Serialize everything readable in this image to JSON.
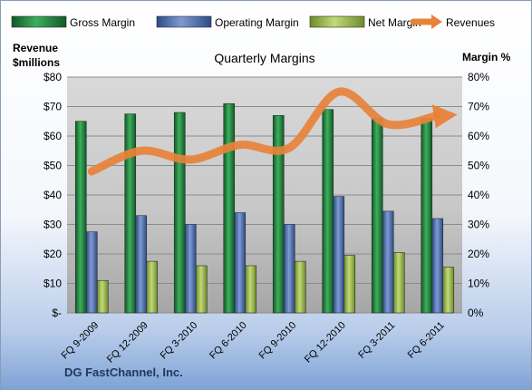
{
  "chart_data": {
    "type": "bar",
    "title": "Quarterly Margins",
    "ylabel_left": "Revenue\n$millions",
    "ylabel_right": "Margin %",
    "categories": [
      "FQ 9-2009",
      "FQ 12-2009",
      "FQ 3-2010",
      "FQ 6-2010",
      "FQ 9-2010",
      "FQ 12-2010",
      "FQ 3-2011",
      "FQ 6-2011"
    ],
    "ylim_left": [
      0,
      80
    ],
    "ylim_right": [
      0,
      80
    ],
    "left_ticks": [
      "$-",
      "$10",
      "$20",
      "$30",
      "$40",
      "$50",
      "$60",
      "$70",
      "$80"
    ],
    "right_ticks": [
      "0%",
      "10%",
      "20%",
      "30%",
      "40%",
      "50%",
      "60%",
      "70%",
      "80%"
    ],
    "legend_position": "top",
    "series": [
      {
        "name": "Gross Margin",
        "type": "bar",
        "axis": "right",
        "unit": "%",
        "color": "#1a7a3a",
        "values": [
          65,
          67.5,
          68,
          71,
          67,
          69,
          66,
          66
        ]
      },
      {
        "name": "Operating Margin",
        "type": "bar",
        "axis": "right",
        "unit": "%",
        "color": "#4a6aab",
        "values": [
          27.5,
          33,
          30,
          34,
          30,
          39.5,
          34.5,
          32
        ]
      },
      {
        "name": "Net Margin",
        "type": "bar",
        "axis": "right",
        "unit": "%",
        "color": "#8fae3e",
        "values": [
          11,
          17.5,
          16,
          16,
          17.5,
          19.5,
          20.5,
          15.5
        ]
      },
      {
        "name": "Revenues",
        "type": "line",
        "axis": "left",
        "unit": "$ millions",
        "color": "#e8823a",
        "values": [
          48,
          55,
          52,
          57,
          56,
          75,
          64,
          67
        ]
      }
    ],
    "grid": true
  },
  "footer": {
    "company": "DG FastChannel, Inc."
  }
}
